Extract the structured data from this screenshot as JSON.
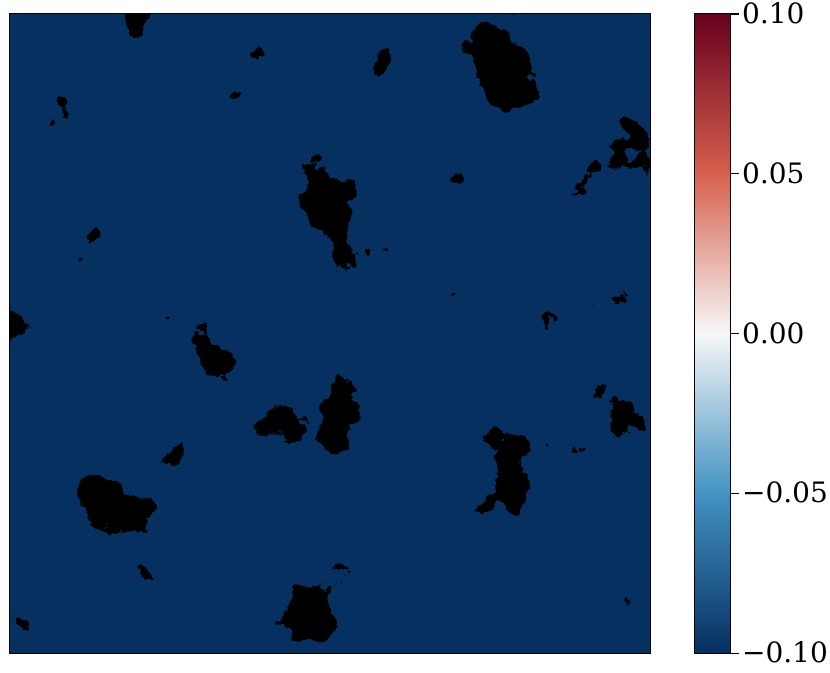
{
  "chart_data": {
    "type": "heatmap",
    "title": "",
    "xlabel": "",
    "ylabel": "",
    "colormap": "RdBu_r",
    "colorbar": {
      "min": -0.1,
      "max": 0.1,
      "ticks": [
        {
          "value": 0.1,
          "label": "0.10"
        },
        {
          "value": 0.05,
          "label": "0.05"
        },
        {
          "value": 0.0,
          "label": "0.00"
        },
        {
          "value": -0.05,
          "label": "−0.05"
        },
        {
          "value": -0.1,
          "label": "−0.10"
        }
      ],
      "colors": {
        "high": "#67001f",
        "mid_high": "#d6604d",
        "mid": "#f7f7f7",
        "mid_low": "#4393c3",
        "low": "#053061"
      }
    },
    "axes_ticks_shown": false,
    "grid": false
  }
}
